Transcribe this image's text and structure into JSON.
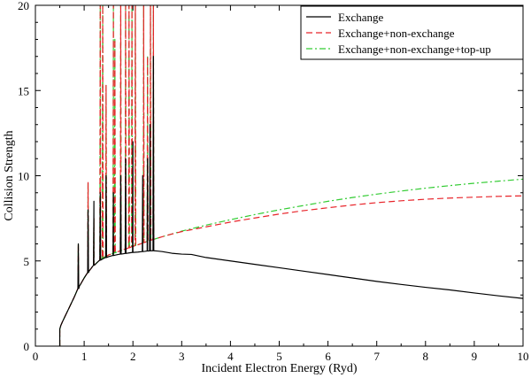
{
  "chart_data": {
    "type": "line",
    "title": "",
    "xlabel": "Incident Electron Energy (Ryd)",
    "ylabel": "Collision Strength",
    "xlim": [
      0,
      10
    ],
    "ylim": [
      0,
      20
    ],
    "xticks": [
      0,
      1,
      2,
      3,
      4,
      5,
      6,
      7,
      8,
      9,
      10
    ],
    "yticks": [
      0,
      5,
      10,
      15,
      20
    ],
    "grid": false,
    "legend_position": "top-right",
    "series": [
      {
        "name": "Exchange",
        "color": "#000000",
        "dash": "solid",
        "x": [
          0.5,
          0.5,
          0.52,
          0.55,
          0.6,
          0.7,
          0.8,
          0.9,
          1.0,
          1.1,
          1.2,
          1.3,
          1.4,
          1.5,
          1.6,
          1.7,
          1.8,
          1.9,
          2.0,
          2.1,
          2.2,
          2.3,
          2.4,
          2.5,
          2.6,
          2.8,
          3.0,
          3.2,
          3.5,
          4.0,
          4.5,
          5.0,
          5.5,
          6.0,
          6.5,
          7.0,
          7.5,
          8.0,
          8.5,
          9.0,
          9.5,
          10.0
        ],
        "y": [
          0.0,
          1.0,
          1.2,
          1.4,
          1.7,
          2.3,
          2.9,
          3.5,
          4.0,
          4.4,
          4.75,
          5.0,
          5.15,
          5.25,
          5.32,
          5.38,
          5.42,
          5.46,
          5.5,
          5.52,
          5.55,
          5.58,
          5.6,
          5.58,
          5.55,
          5.45,
          5.4,
          5.38,
          5.2,
          5.0,
          4.8,
          4.6,
          4.4,
          4.2,
          4.0,
          3.8,
          3.62,
          3.45,
          3.3,
          3.12,
          2.95,
          2.8
        ],
        "resonance_x": [
          0.88,
          1.08,
          1.2,
          1.33,
          1.45,
          1.6,
          1.75,
          1.85,
          2.0,
          2.2,
          2.3,
          2.35,
          2.42
        ],
        "resonance_y": [
          6.0,
          8.0,
          8.5,
          9.0,
          10.0,
          9.0,
          10.0,
          11.0,
          12.0,
          10.0,
          11.0,
          13.0,
          17.0
        ]
      },
      {
        "name": "Exchange+non-exchange",
        "color": "#e8242a",
        "dash": "dashed",
        "x": [
          0.5,
          0.5,
          0.52,
          0.55,
          0.6,
          0.7,
          0.8,
          0.9,
          1.0,
          1.1,
          1.2,
          1.3,
          1.4,
          1.5,
          1.6,
          1.8,
          2.0,
          2.2,
          2.4,
          2.6,
          2.8,
          3.0,
          3.5,
          4.0,
          4.5,
          5.0,
          5.5,
          6.0,
          6.5,
          7.0,
          7.5,
          8.0,
          8.5,
          9.0,
          9.5,
          10.0
        ],
        "y": [
          0.0,
          1.0,
          1.2,
          1.4,
          1.7,
          2.3,
          2.9,
          3.5,
          4.0,
          4.4,
          4.75,
          5.0,
          5.2,
          5.35,
          5.45,
          5.65,
          5.85,
          6.05,
          6.25,
          6.42,
          6.58,
          6.72,
          7.0,
          7.28,
          7.52,
          7.75,
          7.95,
          8.12,
          8.28,
          8.42,
          8.53,
          8.62,
          8.69,
          8.74,
          8.79,
          8.82
        ],
        "resonance_x": [
          0.88,
          1.08,
          1.2,
          1.33,
          1.38,
          1.45,
          1.6,
          1.63,
          1.75,
          1.85,
          1.92,
          1.98,
          2.05,
          2.22,
          2.3,
          2.36,
          2.42
        ],
        "resonance_y": [
          6.0,
          9.6,
          7.5,
          20.0,
          20.0,
          15.3,
          20.0,
          18.0,
          20.0,
          20.0,
          20.0,
          20.0,
          20.0,
          20.0,
          17.0,
          20.0,
          20.0
        ]
      },
      {
        "name": "Exchange+non-exchange+top-up",
        "color": "#33cc33",
        "dash": "dashdot",
        "x": [
          0.5,
          0.5,
          0.52,
          0.55,
          0.6,
          0.7,
          0.8,
          0.9,
          1.0,
          1.1,
          1.2,
          1.3,
          1.4,
          1.5,
          1.6,
          1.8,
          2.0,
          2.2,
          2.4,
          2.6,
          2.8,
          3.0,
          3.5,
          4.0,
          4.5,
          5.0,
          5.5,
          6.0,
          6.5,
          7.0,
          7.5,
          8.0,
          8.5,
          9.0,
          9.5,
          10.0
        ],
        "y": [
          0.0,
          1.0,
          1.2,
          1.4,
          1.7,
          2.3,
          2.9,
          3.5,
          4.0,
          4.4,
          4.75,
          5.0,
          5.2,
          5.35,
          5.45,
          5.65,
          5.85,
          6.05,
          6.25,
          6.42,
          6.58,
          6.75,
          7.1,
          7.42,
          7.72,
          8.0,
          8.25,
          8.5,
          8.72,
          8.92,
          9.1,
          9.27,
          9.42,
          9.56,
          9.68,
          9.8
        ],
        "resonance_x": [
          0.88,
          1.08,
          1.2,
          1.33,
          1.38,
          1.45,
          1.6,
          1.63,
          1.75,
          1.85,
          1.92,
          1.98,
          2.05,
          2.22,
          2.3,
          2.36,
          2.42
        ],
        "resonance_y": [
          6.0,
          9.6,
          7.5,
          20.0,
          20.0,
          15.3,
          20.0,
          18.0,
          20.0,
          20.0,
          20.0,
          20.0,
          20.0,
          20.0,
          17.0,
          20.0,
          20.0
        ]
      }
    ]
  }
}
